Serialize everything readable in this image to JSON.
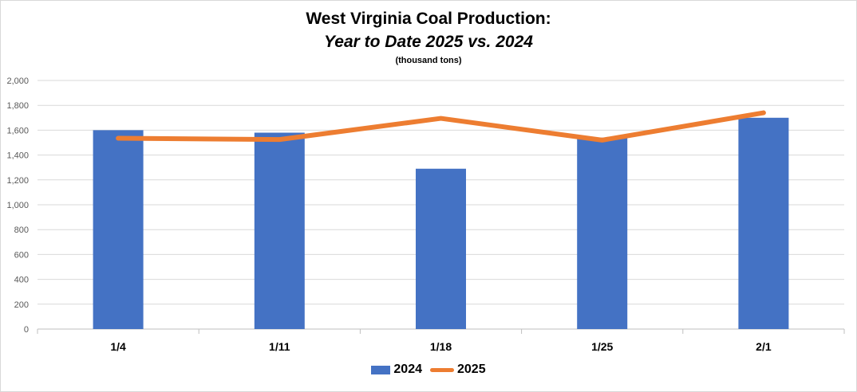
{
  "chart_data": {
    "type": "bar",
    "title": "West Virginia Coal Production:",
    "subtitle": "Year to Date 2025 vs. 2024",
    "units_note": "(thousand tons)",
    "categories": [
      "1/4",
      "1/11",
      "1/18",
      "1/25",
      "2/1"
    ],
    "ylim": [
      0,
      2000
    ],
    "yticks": [
      0,
      200,
      400,
      600,
      800,
      1000,
      1200,
      1400,
      1600,
      1800,
      2000
    ],
    "ytick_labels": [
      "0",
      "200",
      "400",
      "600",
      "800",
      "1,000",
      "1,200",
      "1,400",
      "1,600",
      "1,800",
      "2,000"
    ],
    "grid": true,
    "legend_position": "bottom",
    "series": [
      {
        "name": "2024",
        "type": "bar",
        "color": "#4472c4",
        "values": [
          1600,
          1580,
          1290,
          1540,
          1700
        ]
      },
      {
        "name": "2025",
        "type": "line",
        "color": "#ed7d31",
        "values": [
          1535,
          1525,
          1695,
          1520,
          1740
        ]
      }
    ]
  }
}
